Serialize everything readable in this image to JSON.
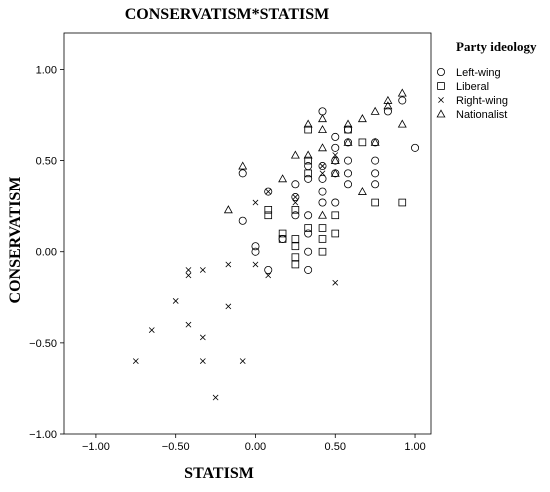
{
  "chart_data": {
    "type": "scatter",
    "title": "CONSERVATISM*STATISM",
    "xlabel": "STATISM",
    "ylabel": "CONSERVATISM",
    "xlim": [
      -1.2,
      1.1
    ],
    "ylim": [
      -1.0,
      1.2
    ],
    "xticks": [
      -1.0,
      -0.5,
      0.0,
      0.5,
      1.0
    ],
    "xtick_labels": [
      "−1.00",
      "−0.50",
      "0.00",
      "0.50",
      "1.00"
    ],
    "yticks": [
      -1.0,
      -0.5,
      0.0,
      0.5,
      1.0
    ],
    "ytick_labels": [
      "−1.00",
      "−0.50",
      "0.00",
      "0.50",
      "1.00"
    ],
    "grid": false,
    "legend": {
      "title": "Party ideology",
      "placement": "right"
    },
    "series": [
      {
        "name": "Left-wing",
        "marker": "circle",
        "points": [
          [
            -0.08,
            0.43
          ],
          [
            -0.08,
            0.17
          ],
          [
            0.08,
            0.33
          ],
          [
            0.08,
            -0.1
          ],
          [
            0.0,
            0.0
          ],
          [
            0.0,
            0.03
          ],
          [
            0.17,
            0.07
          ],
          [
            0.25,
            0.37
          ],
          [
            0.25,
            0.3
          ],
          [
            0.25,
            0.2
          ],
          [
            0.33,
            0.47
          ],
          [
            0.33,
            0.4
          ],
          [
            0.33,
            0.2
          ],
          [
            0.33,
            0.1
          ],
          [
            0.33,
            0.0
          ],
          [
            0.33,
            -0.1
          ],
          [
            0.42,
            0.77
          ],
          [
            0.42,
            0.47
          ],
          [
            0.42,
            0.4
          ],
          [
            0.42,
            0.33
          ],
          [
            0.42,
            0.27
          ],
          [
            0.5,
            0.63
          ],
          [
            0.5,
            0.5
          ],
          [
            0.5,
            0.57
          ],
          [
            0.5,
            0.43
          ],
          [
            0.5,
            0.27
          ],
          [
            0.58,
            0.67
          ],
          [
            0.58,
            0.6
          ],
          [
            0.58,
            0.5
          ],
          [
            0.58,
            0.43
          ],
          [
            0.58,
            0.37
          ],
          [
            0.75,
            0.6
          ],
          [
            0.75,
            0.5
          ],
          [
            0.75,
            0.43
          ],
          [
            0.75,
            0.37
          ],
          [
            0.83,
            0.77
          ],
          [
            0.92,
            0.83
          ],
          [
            1.0,
            0.57
          ]
        ]
      },
      {
        "name": "Liberal",
        "marker": "square",
        "points": [
          [
            0.08,
            0.2
          ],
          [
            0.08,
            0.23
          ],
          [
            0.17,
            0.1
          ],
          [
            0.17,
            0.07
          ],
          [
            0.25,
            0.07
          ],
          [
            0.25,
            0.03
          ],
          [
            0.25,
            -0.03
          ],
          [
            0.25,
            -0.07
          ],
          [
            0.25,
            0.23
          ],
          [
            0.33,
            0.67
          ],
          [
            0.33,
            0.5
          ],
          [
            0.33,
            0.43
          ],
          [
            0.33,
            0.13
          ],
          [
            0.42,
            0.13
          ],
          [
            0.42,
            0.07
          ],
          [
            0.42,
            0.0
          ],
          [
            0.5,
            0.2
          ],
          [
            0.5,
            0.1
          ],
          [
            0.58,
            0.67
          ],
          [
            0.67,
            0.6
          ],
          [
            0.75,
            0.27
          ],
          [
            0.92,
            0.27
          ]
        ]
      },
      {
        "name": "Right-wing",
        "marker": "x",
        "points": [
          [
            -0.75,
            -0.6
          ],
          [
            -0.65,
            -0.43
          ],
          [
            -0.5,
            -0.27
          ],
          [
            -0.42,
            -0.1
          ],
          [
            -0.42,
            -0.13
          ],
          [
            -0.42,
            -0.4
          ],
          [
            -0.33,
            -0.1
          ],
          [
            -0.33,
            -0.47
          ],
          [
            -0.33,
            -0.6
          ],
          [
            -0.25,
            -0.8
          ],
          [
            -0.17,
            -0.07
          ],
          [
            -0.17,
            -0.3
          ],
          [
            -0.08,
            -0.6
          ],
          [
            0.0,
            0.27
          ],
          [
            0.0,
            -0.07
          ],
          [
            0.08,
            0.33
          ],
          [
            0.08,
            -0.13
          ],
          [
            0.25,
            0.3
          ],
          [
            0.25,
            0.27
          ],
          [
            0.42,
            0.47
          ],
          [
            0.42,
            0.43
          ],
          [
            0.5,
            0.53
          ],
          [
            0.5,
            -0.17
          ]
        ]
      },
      {
        "name": "Nationalist",
        "marker": "triangle",
        "points": [
          [
            -0.08,
            0.47
          ],
          [
            -0.17,
            0.23
          ],
          [
            0.33,
            0.53
          ],
          [
            0.33,
            0.7
          ],
          [
            0.42,
            0.57
          ],
          [
            0.42,
            0.67
          ],
          [
            0.42,
            0.73
          ],
          [
            0.5,
            0.5
          ],
          [
            0.58,
            0.6
          ],
          [
            0.58,
            0.7
          ],
          [
            0.67,
            0.73
          ],
          [
            0.67,
            0.33
          ],
          [
            0.75,
            0.77
          ],
          [
            0.83,
            0.8
          ],
          [
            0.83,
            0.83
          ],
          [
            0.92,
            0.87
          ],
          [
            0.92,
            0.7
          ],
          [
            0.75,
            0.6
          ],
          [
            0.42,
            0.2
          ],
          [
            0.25,
            0.53
          ],
          [
            0.17,
            0.4
          ],
          [
            0.5,
            0.43
          ]
        ]
      }
    ]
  }
}
